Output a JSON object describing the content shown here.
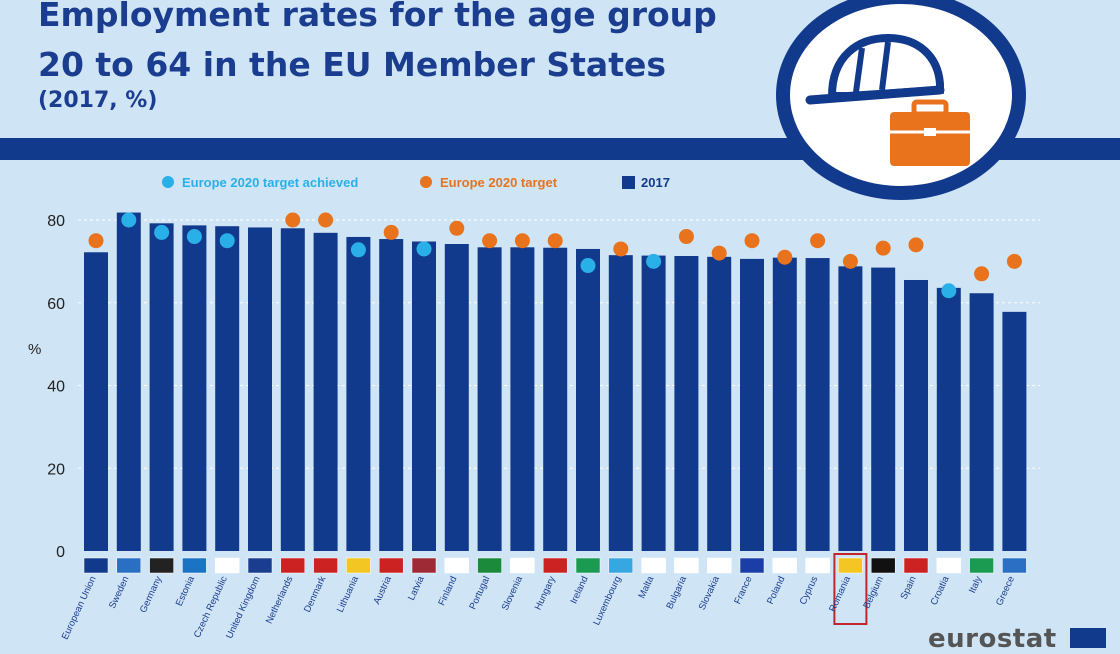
{
  "header": {
    "title_line1": "Employment rates for the age group",
    "title_line2": "20 to 64 in the EU Member States",
    "subtitle": "(2017, %)"
  },
  "legend": {
    "achieved": "Europe 2020 target achieved",
    "target": "Europe 2020 target",
    "bar": "2017"
  },
  "colors": {
    "bar": "#123a8c",
    "target": "#e8731c",
    "achieved": "#2ab0e8",
    "background": "#cfe4f5",
    "highlight": "#c0262c"
  },
  "brand": {
    "logo_text": "eurostat"
  },
  "chart_data": {
    "type": "bar",
    "title": "Employment rates for the age group 20 to 64 in the EU Member States",
    "ylabel": "%",
    "ylim": [
      0,
      85
    ],
    "yticks": [
      0,
      20,
      40,
      60,
      80
    ],
    "highlight": "Romania",
    "categories": [
      "European Union",
      "Sweden",
      "Germany",
      "Estonia",
      "Czech Republic",
      "United Kingdom",
      "Netherlands",
      "Denmark",
      "Lithuania",
      "Austria",
      "Latvia",
      "Finland",
      "Portugal",
      "Slovenia",
      "Hungary",
      "Ireland",
      "Luxembourg",
      "Malta",
      "Bulgaria",
      "Slovakia",
      "France",
      "Poland",
      "Cyprus",
      "Romania",
      "Belgium",
      "Spain",
      "Croatia",
      "Italy",
      "Greece"
    ],
    "series": [
      {
        "name": "2017",
        "values": [
          72.2,
          81.8,
          79.2,
          78.7,
          78.5,
          78.2,
          78.0,
          76.9,
          75.9,
          75.4,
          74.8,
          74.2,
          73.4,
          73.4,
          73.3,
          73.0,
          71.5,
          71.4,
          71.3,
          71.1,
          70.6,
          70.9,
          70.8,
          68.8,
          68.5,
          65.5,
          63.6,
          62.3,
          57.8
        ]
      },
      {
        "name": "Europe 2020 target",
        "values": [
          75,
          80,
          77,
          76,
          75,
          null,
          80,
          80,
          72.8,
          77,
          73,
          78,
          75,
          75,
          75,
          69,
          73,
          70,
          76,
          72,
          75,
          71,
          75,
          70,
          73.2,
          74,
          62.9,
          67,
          70
        ]
      }
    ],
    "target_achieved": [
      false,
      true,
      true,
      true,
      true,
      false,
      false,
      false,
      true,
      false,
      true,
      false,
      false,
      false,
      false,
      true,
      false,
      true,
      false,
      false,
      false,
      false,
      false,
      false,
      false,
      false,
      true,
      false,
      false
    ],
    "flags": [
      "eu",
      "se",
      "de",
      "ee",
      "cz",
      "gb",
      "nl",
      "dk",
      "lt",
      "at",
      "lv",
      "fi",
      "pt",
      "si",
      "hu",
      "ie",
      "lu",
      "mt",
      "bg",
      "sk",
      "fr",
      "pl",
      "cy",
      "ro",
      "be",
      "es",
      "hr",
      "it",
      "gr"
    ]
  }
}
